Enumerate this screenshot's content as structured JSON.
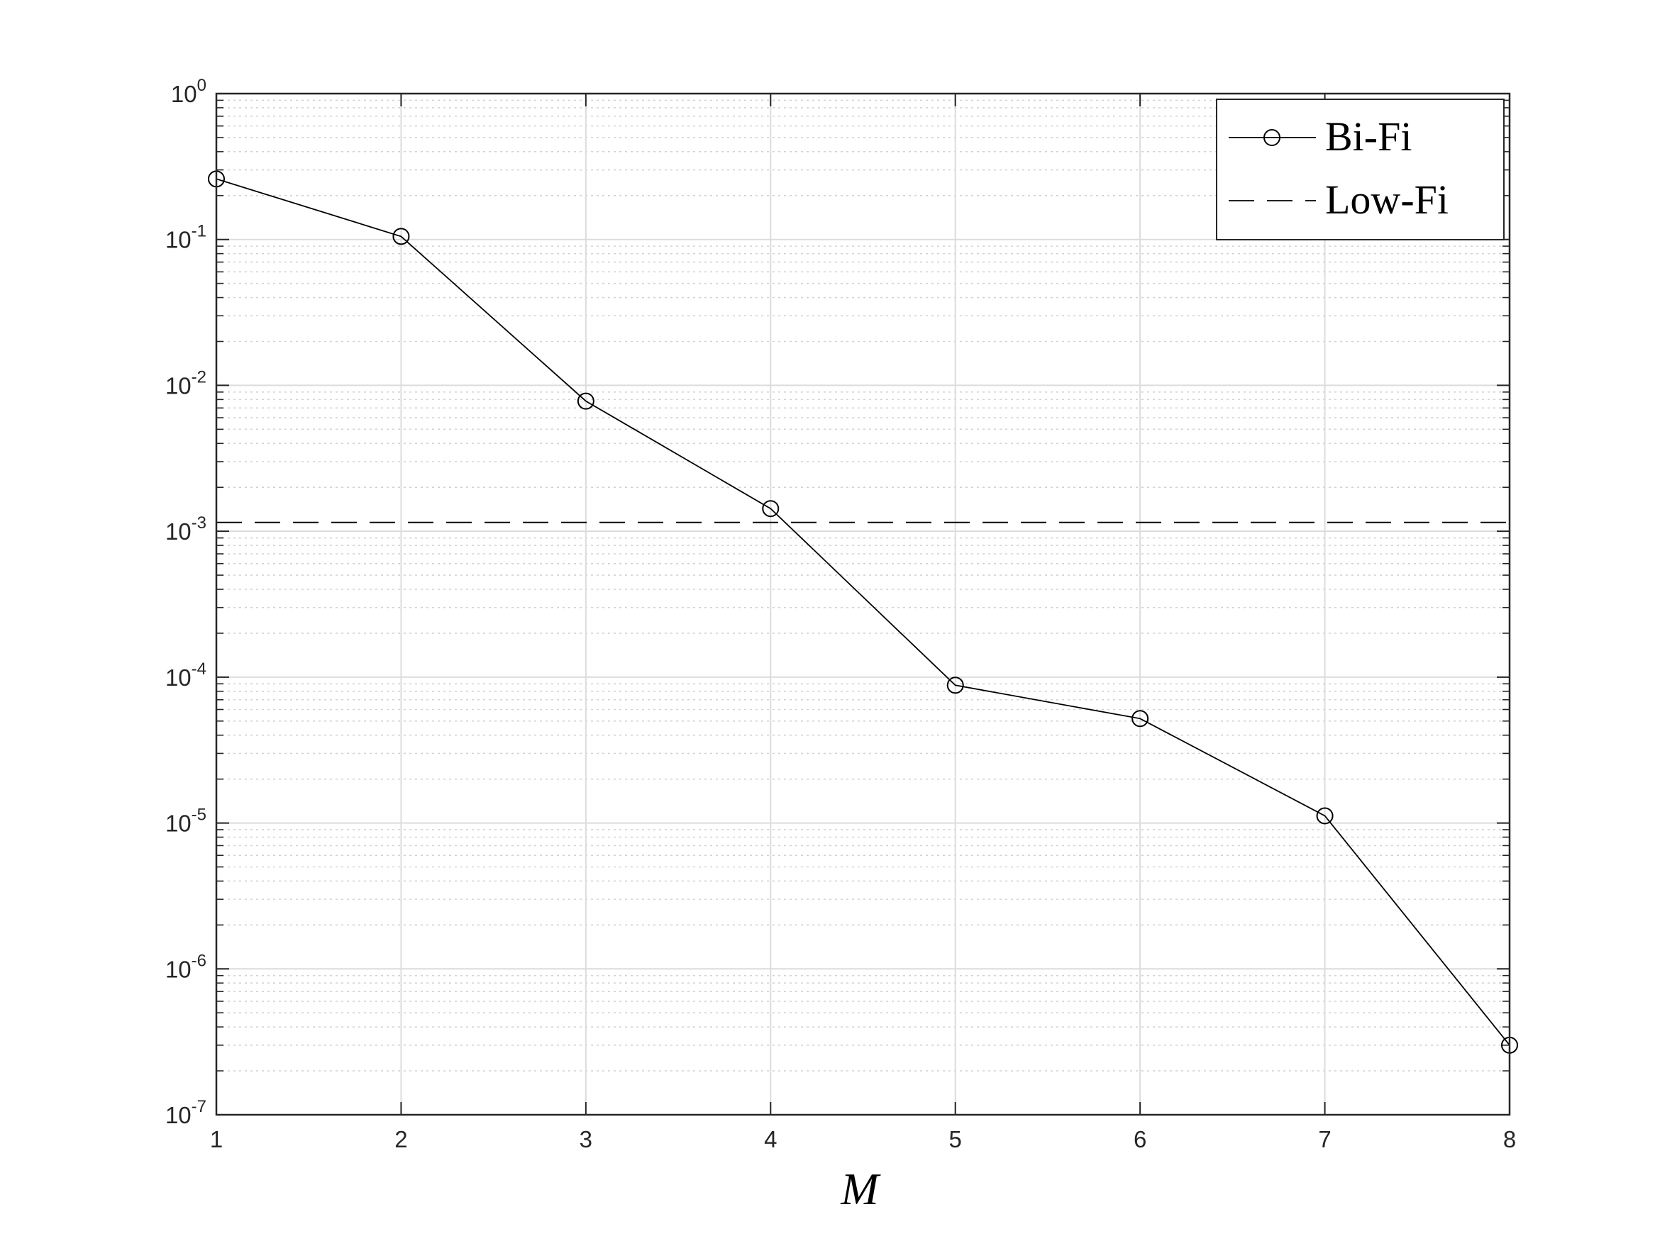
{
  "chart_data": {
    "type": "line",
    "xlabel": "M",
    "ylabel": "",
    "title": "",
    "xlim": [
      1,
      8
    ],
    "ylim": [
      1e-07,
      1
    ],
    "yscale": "log",
    "grid": true,
    "minor_grid": true,
    "legend_position": "top-right",
    "x_ticks": [
      "1",
      "2",
      "3",
      "4",
      "5",
      "6",
      "7",
      "8"
    ],
    "y_ticks": [
      {
        "base": "10",
        "exp": "-7"
      },
      {
        "base": "10",
        "exp": "-6"
      },
      {
        "base": "10",
        "exp": "-5"
      },
      {
        "base": "10",
        "exp": "-4"
      },
      {
        "base": "10",
        "exp": "-3"
      },
      {
        "base": "10",
        "exp": "-2"
      },
      {
        "base": "10",
        "exp": "-1"
      },
      {
        "base": "10",
        "exp": "0"
      }
    ],
    "series": [
      {
        "name": "Bi-Fi",
        "style": "solid",
        "marker": "circle",
        "color": "#000000",
        "x": [
          1,
          2,
          3,
          4,
          5,
          6,
          7,
          8
        ],
        "y": [
          0.26,
          0.105,
          0.0078,
          0.00143,
          8.8e-05,
          5.2e-05,
          1.12e-05,
          3e-07
        ]
      },
      {
        "name": "Low-Fi",
        "style": "dashed",
        "marker": "none",
        "color": "#000000",
        "x": [
          1,
          8
        ],
        "y": [
          0.00115,
          0.00115
        ]
      }
    ]
  }
}
